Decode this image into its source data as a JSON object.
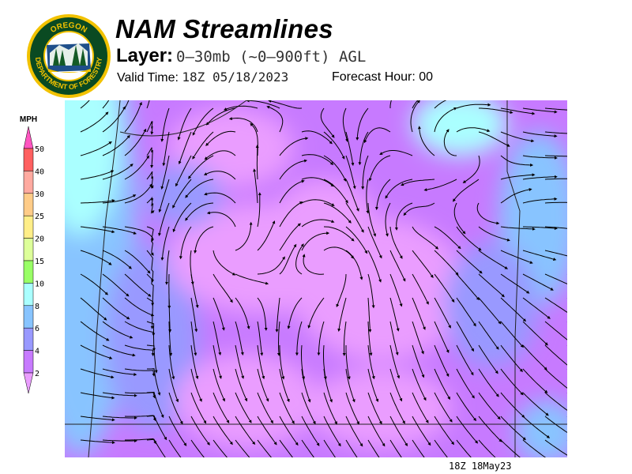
{
  "header": {
    "title": "NAM Streamlines",
    "layer_label": "Layer:",
    "layer_value": "0–30mb (~0–900ft) AGL",
    "valid_label": "Valid Time:",
    "valid_value": "18Z 05/18/2023",
    "forecast_label": "Forecast Hour:",
    "forecast_value": "00"
  },
  "logo": {
    "top_text": "OREGON",
    "bottom_text": "DEPARTMENT OF FORESTRY",
    "colors": {
      "ring": "#0a4a22",
      "border": "#f2c200"
    }
  },
  "legend": {
    "unit": "MPH",
    "ticks": [
      "50",
      "40",
      "30",
      "25",
      "20",
      "15",
      "10",
      "8",
      "6",
      "4",
      "2"
    ],
    "colors": [
      "#ff55c0",
      "#ff6060",
      "#ffaaa0",
      "#ffcc88",
      "#ffee88",
      "#ddff99",
      "#99ff66",
      "#aaffff",
      "#88c4ff",
      "#9999ff",
      "#c77aff",
      "#ea9dff"
    ]
  },
  "map": {
    "field": "wind streamlines",
    "region": "Oregon",
    "speed_shading_colors": [
      "#c77aff",
      "#ea9dff",
      "#9999ff",
      "#88c4ff"
    ]
  },
  "footer": {
    "timestamp": "18Z 18May23"
  }
}
